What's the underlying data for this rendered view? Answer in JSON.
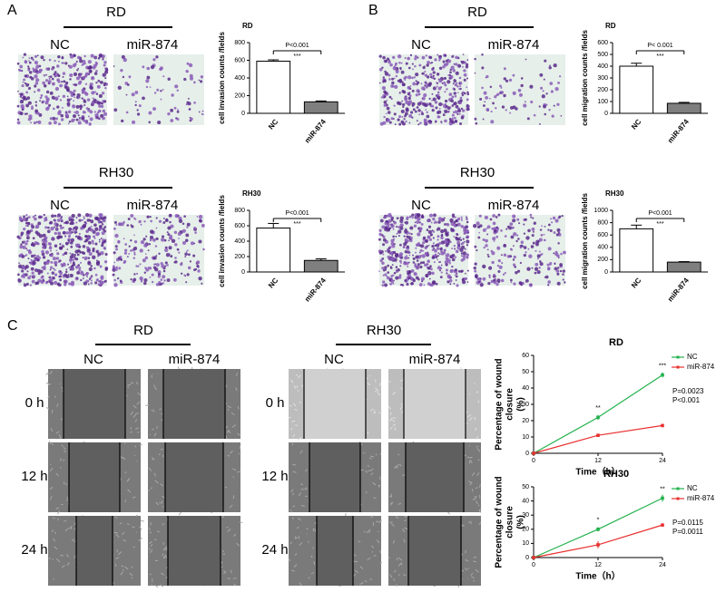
{
  "figure": {
    "panels": [
      {
        "label": "A",
        "rows": [
          {
            "cell_line": "RD",
            "columns": [
              "NC",
              "miR-874"
            ]
          },
          {
            "cell_line": "RH30",
            "columns": [
              "NC",
              "miR-874"
            ]
          }
        ]
      },
      {
        "label": "B",
        "rows": [
          {
            "cell_line": "RD",
            "columns": [
              "NC",
              "miR-874"
            ]
          },
          {
            "cell_line": "RH30",
            "columns": [
              "NC",
              "miR-874"
            ]
          }
        ]
      },
      {
        "label": "C",
        "groups": [
          {
            "cell_line": "RD",
            "columns": [
              "NC",
              "miR-874"
            ]
          },
          {
            "cell_line": "RH30",
            "columns": [
              "NC",
              "miR-874"
            ]
          }
        ],
        "times": [
          "0 h",
          "12 h",
          "24 h"
        ]
      }
    ]
  },
  "chart_data": [
    {
      "type": "bar",
      "title": "RD",
      "y_label": "cell invasion counts /fields",
      "categories": [
        "NC",
        "miR-874"
      ],
      "values": [
        590,
        130
      ],
      "errors": [
        15,
        10
      ],
      "colors": [
        "#ffffff",
        "#7f7f7f"
      ],
      "ylim": [
        0,
        800
      ],
      "yticks": [
        0,
        200,
        400,
        600,
        800
      ],
      "p_value": "P<0.001",
      "significance": "***"
    },
    {
      "type": "bar",
      "title": "RH30",
      "y_label": "cell invasion counts /fields",
      "categories": [
        "NC",
        "miR-874"
      ],
      "values": [
        570,
        150
      ],
      "errors": [
        60,
        20
      ],
      "colors": [
        "#ffffff",
        "#7f7f7f"
      ],
      "ylim": [
        0,
        800
      ],
      "yticks": [
        0,
        200,
        400,
        600,
        800
      ],
      "p_value": "P<0.001",
      "significance": "***"
    },
    {
      "type": "bar",
      "title": "RD",
      "y_label": "cell migration counts /fields",
      "categories": [
        "NC",
        "miR-874"
      ],
      "values": [
        400,
        85
      ],
      "errors": [
        25,
        8
      ],
      "colors": [
        "#ffffff",
        "#7f7f7f"
      ],
      "ylim": [
        0,
        600
      ],
      "yticks": [
        0,
        100,
        200,
        300,
        400,
        500,
        600
      ],
      "p_value": "P< 0.001",
      "significance": "***"
    },
    {
      "type": "bar",
      "title": "RH30",
      "y_label": "cell migration counts /fields",
      "categories": [
        "NC",
        "miR-874"
      ],
      "values": [
        700,
        160
      ],
      "errors": [
        60,
        8
      ],
      "colors": [
        "#ffffff",
        "#7f7f7f"
      ],
      "ylim": [
        0,
        1000
      ],
      "yticks": [
        0,
        200,
        400,
        600,
        800,
        1000
      ],
      "p_value": "P<0.001",
      "significance": "***"
    },
    {
      "type": "line",
      "title": "RD",
      "x_label": "Time（h）",
      "y_label": [
        "Percentage of wound",
        "closure",
        "(%)"
      ],
      "x": [
        0,
        12,
        24
      ],
      "series": [
        {
          "name": "NC",
          "color": "#22b14c",
          "values": [
            0,
            22,
            48
          ],
          "errors": [
            0,
            1.5,
            1.5
          ]
        },
        {
          "name": "miR-874",
          "color": "#e8312f",
          "values": [
            0,
            11,
            17
          ],
          "errors": [
            0,
            1,
            1
          ]
        }
      ],
      "xlim": [
        0,
        24
      ],
      "xticks": [
        0,
        12,
        24
      ],
      "ylim": [
        0,
        60
      ],
      "yticks": [
        0,
        10,
        20,
        30,
        40,
        50,
        60
      ],
      "annotations": [
        {
          "x": 12,
          "text": "**"
        },
        {
          "x": 24,
          "text": "***"
        }
      ],
      "p_values": [
        "P=0.0023",
        "P<0.001"
      ]
    },
    {
      "type": "line",
      "title": "RH30",
      "x_label": "Time（h）",
      "y_label": [
        "Percentage of wound",
        "closure",
        "(%)"
      ],
      "x": [
        0,
        12,
        24
      ],
      "series": [
        {
          "name": "NC",
          "color": "#22b14c",
          "values": [
            0,
            20,
            42
          ],
          "errors": [
            0,
            1.5,
            2.5
          ]
        },
        {
          "name": "miR-874",
          "color": "#e8312f",
          "values": [
            0,
            9,
            23
          ],
          "errors": [
            0,
            2.5,
            1
          ]
        }
      ],
      "xlim": [
        0,
        24
      ],
      "xticks": [
        0,
        12,
        24
      ],
      "ylim": [
        0,
        50
      ],
      "yticks": [
        0,
        10,
        20,
        30,
        40,
        50
      ],
      "annotations": [
        {
          "x": 12,
          "text": "*"
        },
        {
          "x": 24,
          "text": "**"
        }
      ],
      "p_values": [
        "P=0.0115",
        "P=0.0011"
      ]
    }
  ]
}
